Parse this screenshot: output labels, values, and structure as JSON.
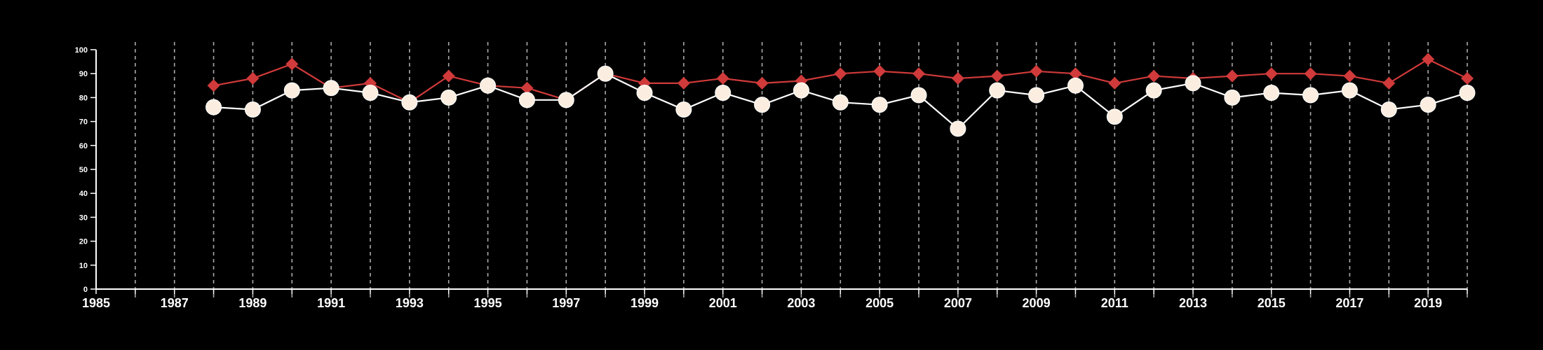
{
  "chart_data": {
    "type": "line",
    "title": "",
    "xlabel": "",
    "ylabel": "",
    "xlim": [
      1985,
      2020
    ],
    "ylim": [
      0,
      100
    ],
    "x_ticks": [
      1985,
      1987,
      1989,
      1991,
      1993,
      1995,
      1997,
      1999,
      2001,
      2003,
      2005,
      2007,
      2009,
      2011,
      2013,
      2015,
      2017,
      2019
    ],
    "y_ticks": [
      0,
      10,
      20,
      30,
      40,
      50,
      60,
      70,
      80,
      90,
      100
    ],
    "grid": "vertical dashed lines at every year",
    "legend": "none",
    "background_color": "#000000",
    "x": [
      1988,
      1989,
      1990,
      1991,
      1992,
      1993,
      1994,
      1995,
      1996,
      1997,
      1998,
      1999,
      2000,
      2001,
      2002,
      2003,
      2004,
      2005,
      2006,
      2007,
      2008,
      2009,
      2010,
      2011,
      2012,
      2013,
      2014,
      2015,
      2016,
      2017,
      2018,
      2019,
      2020
    ],
    "series": [
      {
        "marker": "diamond",
        "color": "#d03a3a",
        "values": [
          85,
          88,
          94,
          84,
          86,
          78,
          89,
          85,
          84,
          79,
          90,
          86,
          86,
          88,
          86,
          87,
          90,
          91,
          90,
          88,
          89,
          91,
          90,
          86,
          89,
          88,
          89,
          90,
          90,
          89,
          86,
          96,
          88
        ]
      },
      {
        "marker": "circle",
        "color": "#fbeee0",
        "line_color": "#ffffff",
        "values": [
          76,
          75,
          83,
          84,
          82,
          78,
          80,
          85,
          79,
          79,
          90,
          82,
          75,
          82,
          77,
          83,
          78,
          77,
          81,
          67,
          83,
          81,
          85,
          72,
          83,
          86,
          80,
          82,
          81,
          83,
          75,
          77,
          82
        ]
      }
    ]
  }
}
